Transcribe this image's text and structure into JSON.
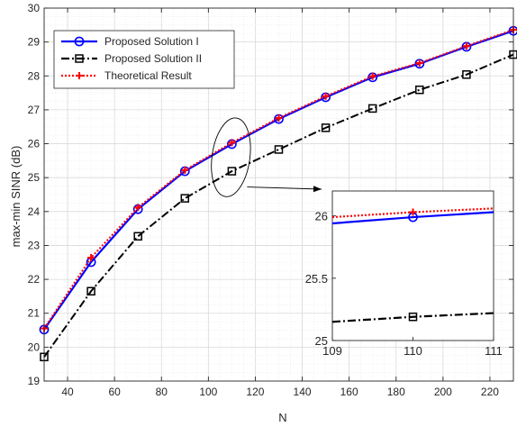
{
  "chart_data": {
    "type": "line",
    "xlabel": "N",
    "ylabel": "max-min SINR (dB)",
    "xlim": [
      30,
      230
    ],
    "ylim": [
      19,
      30
    ],
    "xticks": [
      40,
      60,
      80,
      100,
      120,
      140,
      160,
      180,
      200,
      220
    ],
    "yticks": [
      19,
      20,
      21,
      22,
      23,
      24,
      25,
      26,
      27,
      28,
      29,
      30
    ],
    "grid": true,
    "legend_position": "top-left",
    "x": [
      30,
      50,
      70,
      90,
      110,
      130,
      150,
      170,
      190,
      210,
      230
    ],
    "series": [
      {
        "name": "Proposed Solution I",
        "color": "#0000ff",
        "marker": "circle",
        "line_style": "solid",
        "values": [
          20.52,
          22.51,
          24.07,
          25.19,
          25.99,
          26.73,
          27.37,
          27.96,
          28.36,
          28.86,
          29.33
        ]
      },
      {
        "name": "Proposed Solution II",
        "color": "#000000",
        "marker": "square",
        "line_style": "dash-dot",
        "values": [
          19.71,
          21.65,
          23.27,
          24.39,
          25.19,
          25.83,
          26.47,
          27.04,
          27.59,
          28.04,
          28.63
        ]
      },
      {
        "name": "Theoretical Result",
        "color": "#ff0000",
        "marker": "plus",
        "line_style": "dotted",
        "values": [
          20.55,
          22.64,
          24.12,
          25.22,
          26.03,
          26.76,
          27.4,
          27.99,
          28.38,
          28.88,
          29.36
        ]
      }
    ],
    "inset": {
      "xlim": [
        109,
        111
      ],
      "ylim": [
        25,
        26.2
      ],
      "xticks": [
        109,
        110,
        111
      ],
      "yticks": [
        25,
        25.5,
        26
      ],
      "ytick_labels": [
        "25",
        "25.5",
        "26"
      ],
      "series_values": [
        [
          25.94,
          25.99,
          26.03
        ],
        [
          25.15,
          25.19,
          25.22
        ],
        [
          25.99,
          26.03,
          26.06
        ]
      ]
    }
  }
}
